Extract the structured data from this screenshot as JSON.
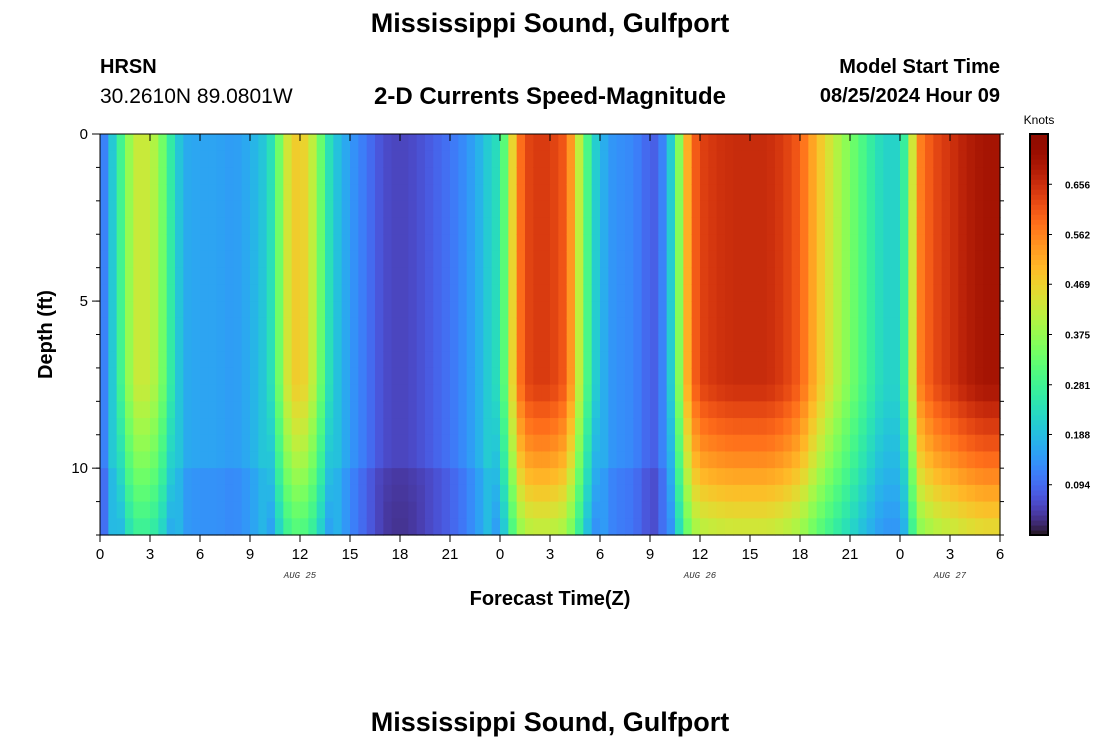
{
  "header": {
    "title": "Mississippi Sound, Gulfport",
    "station_id": "HRSN",
    "coordinates": "30.2610N  89.0801W",
    "plot_title": "2-D Currents Speed-Magnitude",
    "model_label": "Model Start Time",
    "model_time": "08/25/2024 Hour 09"
  },
  "footer": {
    "title": "Mississippi Sound, Gulfport"
  },
  "chart_data": {
    "type": "heatmap",
    "title": "2-D Currents Speed-Magnitude",
    "xlabel": "Forecast Time(Z)",
    "ylabel": "Depth (ft)",
    "x_hours_range": [
      0,
      54
    ],
    "x_tick_values": [
      0,
      3,
      6,
      9,
      12,
      15,
      18,
      21,
      24,
      27,
      30,
      33,
      36,
      39,
      42,
      45,
      48,
      51,
      54
    ],
    "x_tick_labels": [
      "0",
      "3",
      "6",
      "9",
      "12",
      "15",
      "18",
      "21",
      "0",
      "3",
      "6",
      "9",
      "12",
      "15",
      "18",
      "21",
      "0",
      "3",
      "6"
    ],
    "date_labels": [
      {
        "hour": 12,
        "text": "AUG 25"
      },
      {
        "hour": 36,
        "text": "AUG 26"
      },
      {
        "hour": 51,
        "text": "AUG 27"
      }
    ],
    "ylim": [
      0,
      12
    ],
    "y_tick_values": [
      0,
      5,
      10
    ],
    "y_tick_labels": [
      "0",
      "5",
      "10"
    ],
    "colorbar": {
      "title": "Knots",
      "range": [
        0,
        0.75
      ],
      "ticks": [
        0.094,
        0.188,
        0.281,
        0.375,
        0.469,
        0.562,
        0.656
      ],
      "tick_labels": [
        "0.094",
        "0.188",
        "0.281",
        "0.375",
        "0.469",
        "0.562",
        "0.656"
      ],
      "colormap": "turbo"
    },
    "surface_speed_profile": {
      "hours": [
        0,
        0.5,
        1,
        1.5,
        2,
        2.5,
        3,
        3.5,
        4,
        4.5,
        5,
        6,
        7,
        8,
        9,
        10,
        10.5,
        11,
        11.5,
        12,
        12.5,
        13,
        13.5,
        14,
        15,
        16,
        17,
        18,
        19,
        20,
        21,
        22,
        23,
        24,
        24.5,
        25,
        25.5,
        26,
        27,
        28,
        28.5,
        29,
        29.5,
        30,
        30.5,
        31,
        32,
        32.5,
        33,
        33.5,
        34,
        34.5,
        35,
        35.5,
        36,
        37,
        38,
        39,
        40,
        41,
        42,
        43,
        44,
        45,
        46,
        47,
        48,
        48.5,
        49,
        50,
        51,
        52,
        53,
        54
      ],
      "speed_knots": [
        0.08,
        0.15,
        0.24,
        0.33,
        0.42,
        0.43,
        0.42,
        0.38,
        0.3,
        0.22,
        0.16,
        0.15,
        0.15,
        0.14,
        0.16,
        0.2,
        0.28,
        0.4,
        0.47,
        0.48,
        0.45,
        0.38,
        0.28,
        0.2,
        0.14,
        0.1,
        0.06,
        0.05,
        0.06,
        0.08,
        0.1,
        0.13,
        0.18,
        0.25,
        0.38,
        0.55,
        0.62,
        0.64,
        0.64,
        0.6,
        0.48,
        0.35,
        0.24,
        0.18,
        0.14,
        0.13,
        0.12,
        0.1,
        0.08,
        0.08,
        0.15,
        0.27,
        0.45,
        0.58,
        0.63,
        0.65,
        0.66,
        0.66,
        0.66,
        0.64,
        0.6,
        0.5,
        0.42,
        0.35,
        0.28,
        0.22,
        0.22,
        0.32,
        0.55,
        0.62,
        0.65,
        0.68,
        0.7,
        0.7
      ]
    }
  }
}
